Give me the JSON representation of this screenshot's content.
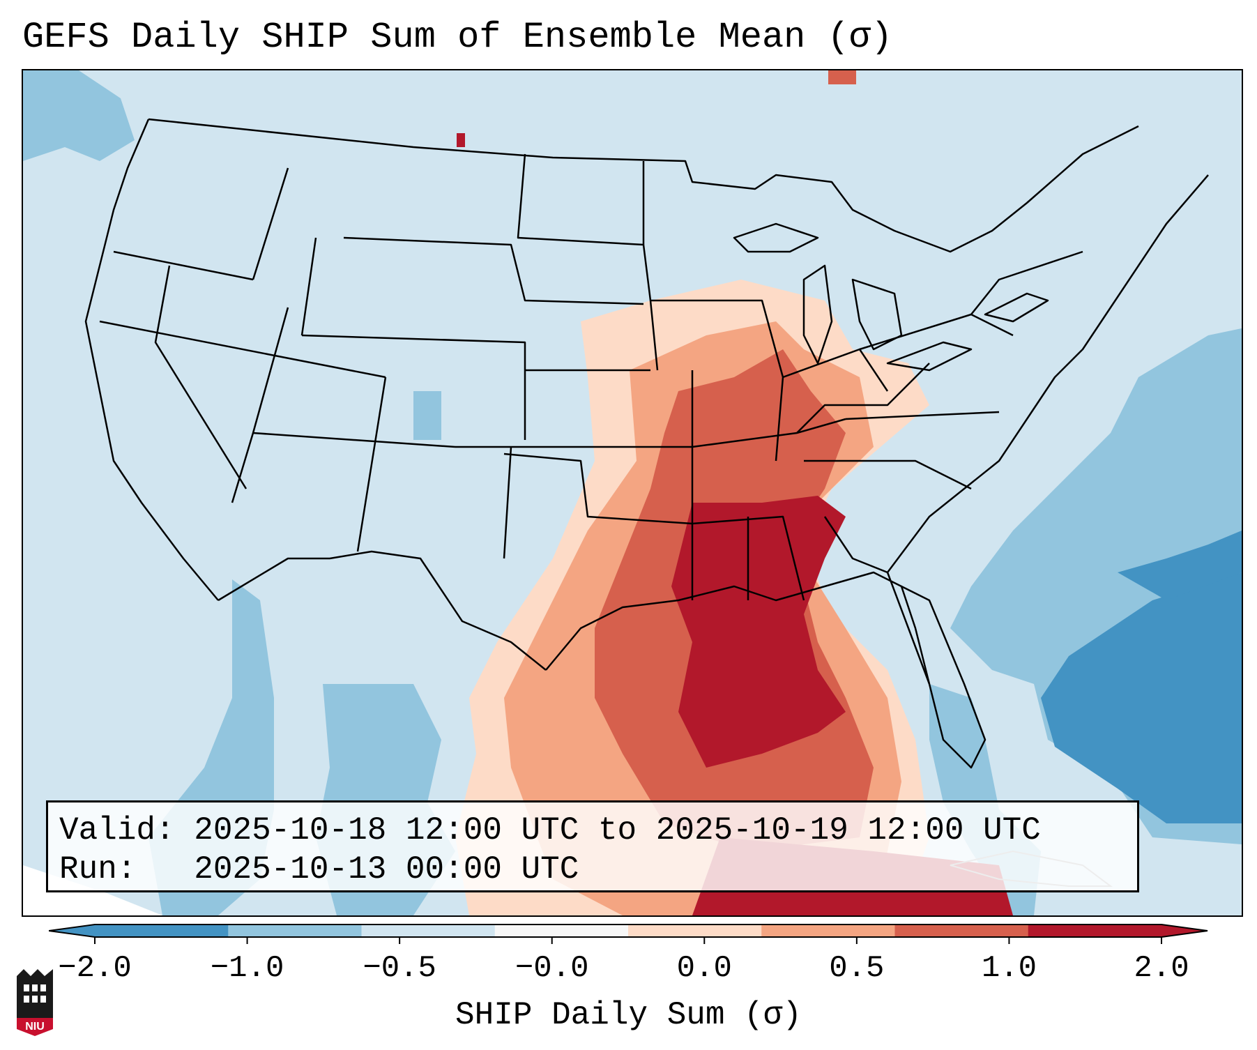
{
  "title": "GEFS Daily SHIP Sum of Ensemble Mean (σ)",
  "info": {
    "valid_label": "Valid:",
    "valid_value": "2025-10-18 12:00 UTC to 2025-10-19 12:00 UTC",
    "run_label": "Run:",
    "run_value": "2025-10-13 00:00 UTC"
  },
  "colorbar": {
    "label": "SHIP Daily Sum (σ)",
    "ticks": [
      "−2.0",
      "−1.0",
      "−0.5",
      "−0.0",
      "0.0",
      "0.5",
      "1.0",
      "2.0"
    ],
    "colors": [
      "#4393c3",
      "#92c5de",
      "#d1e5f0",
      "#f7f7f7",
      "#fddbc7",
      "#f4a582",
      "#d6604d",
      "#b2182b"
    ],
    "extend": "both"
  },
  "map": {
    "region": "Contiguous United States",
    "background_color": "#d1e5f0",
    "outline_color": "#000000"
  },
  "logo": {
    "text": "NIU"
  }
}
